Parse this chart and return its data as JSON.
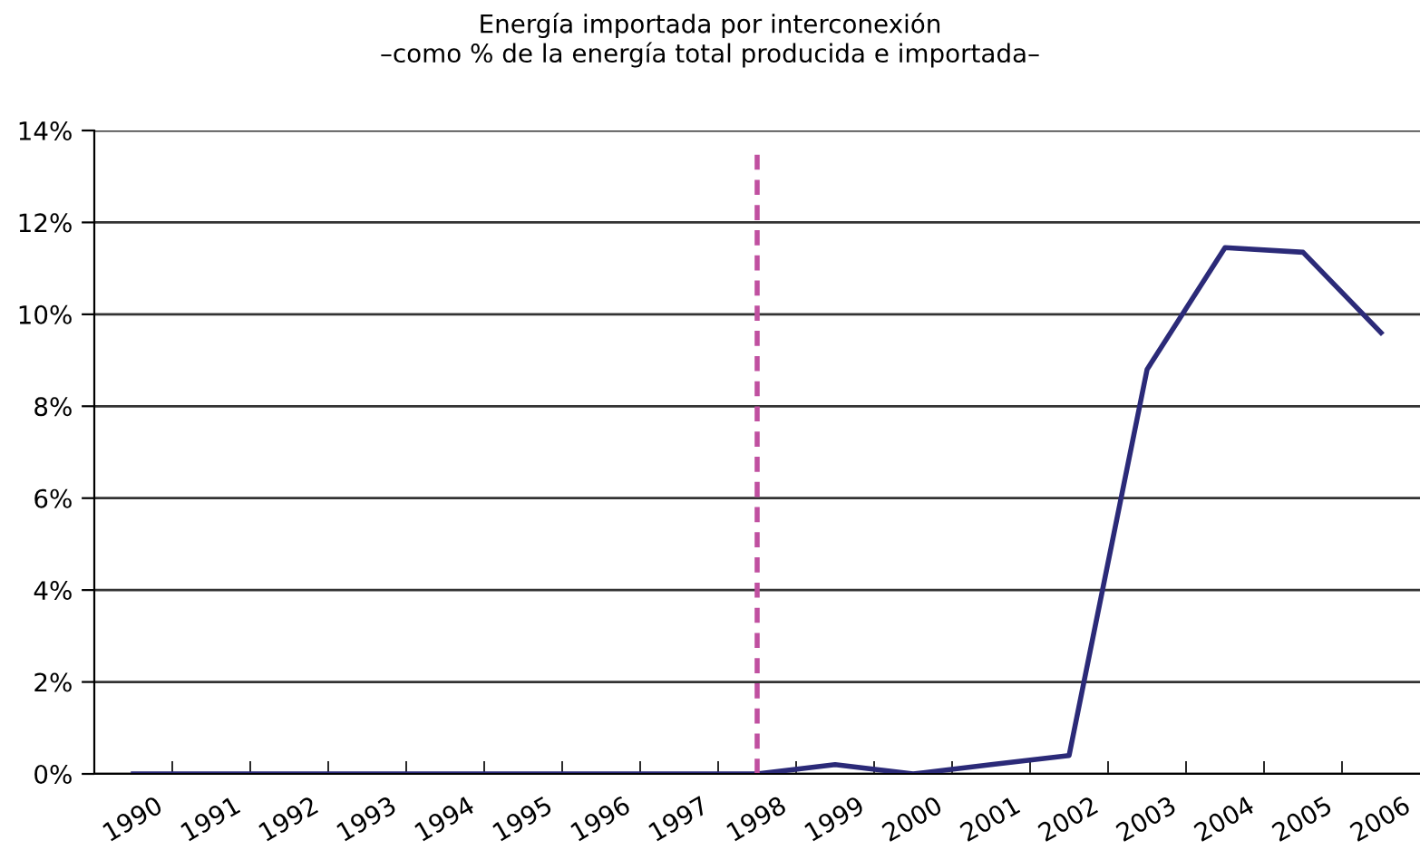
{
  "chart_data": {
    "type": "line",
    "title": "Energía importada por interconexión\n–como % de la energía total producida e importada–",
    "categories": [
      "1990",
      "1991",
      "1992",
      "1993",
      "1994",
      "1995",
      "1996",
      "1997",
      "1998",
      "1999",
      "2000",
      "2001",
      "2002",
      "2003",
      "2004",
      "2005",
      "2006"
    ],
    "series": [
      {
        "color": "#2b2a78",
        "values": [
          0,
          0,
          0,
          0,
          0,
          0,
          0,
          0,
          0,
          0.2,
          0,
          0.2,
          0.4,
          8.8,
          11.45,
          11.35,
          9.6
        ]
      }
    ],
    "ylim": [
      0,
      14
    ],
    "yticks": [
      {
        "value": 0,
        "label": "0%"
      },
      {
        "value": 2,
        "label": "2%"
      },
      {
        "value": 4,
        "label": "4%"
      },
      {
        "value": 6,
        "label": "6%"
      },
      {
        "value": 8,
        "label": "8%"
      },
      {
        "value": 10,
        "label": "10%"
      },
      {
        "value": 12,
        "label": "12%"
      },
      {
        "value": 14,
        "label": "14%"
      }
    ],
    "grid": "y",
    "legend": false,
    "marker": "none",
    "line_style": "solid",
    "ref_lines": [
      {
        "axis": "x",
        "value": "1998",
        "color": "#c050a0",
        "line_style": "dashed"
      }
    ]
  }
}
